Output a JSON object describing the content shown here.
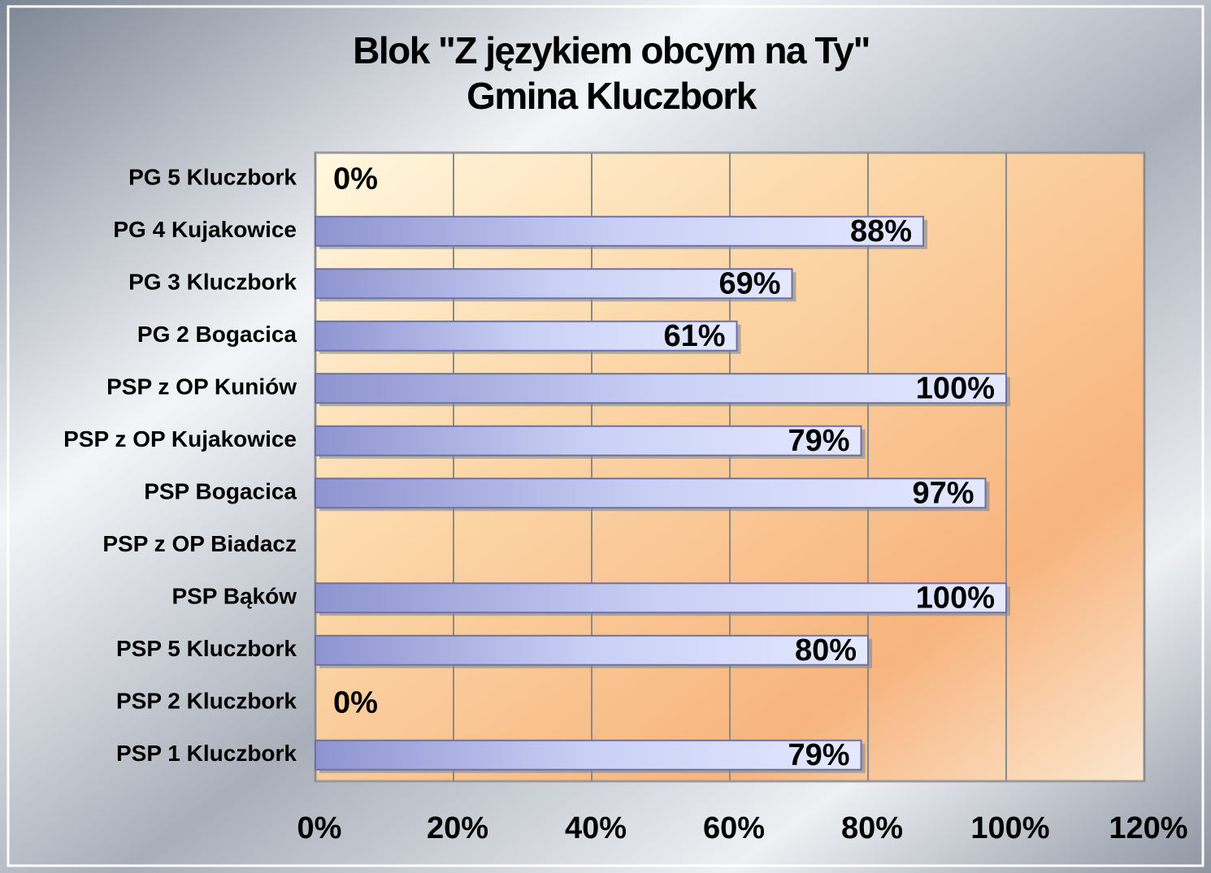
{
  "chart_data": {
    "type": "bar",
    "orientation": "horizontal",
    "title": "Blok \"Z językiem obcym na Ty\"",
    "subtitle": "Gmina Kluczbork",
    "categories": [
      "PG 5 Kluczbork",
      "PG 4 Kujakowice",
      "PG 3 Kluczbork",
      "PG 2 Bogacica",
      "PSP z OP Kuniów",
      "PSP z OP Kujakowice",
      "PSP Bogacica",
      "PSP z OP Biadacz",
      "PSP Bąków",
      "PSP 5 Kluczbork",
      "PSP 2 Kluczbork",
      "PSP 1 Kluczbork"
    ],
    "values": [
      0,
      88,
      69,
      61,
      100,
      79,
      97,
      null,
      100,
      80,
      0,
      79
    ],
    "value_labels": [
      "0%",
      "88%",
      "69%",
      "61%",
      "100%",
      "79%",
      "97%",
      null,
      "100%",
      "80%",
      "0%",
      "79%"
    ],
    "color": "#aab2ea",
    "xlim": [
      0,
      120
    ],
    "xticks": [
      {
        "value": 0,
        "label": "0%"
      },
      {
        "value": 20,
        "label": "20%"
      },
      {
        "value": 40,
        "label": "40%"
      },
      {
        "value": 60,
        "label": "60%"
      },
      {
        "value": 80,
        "label": "80%"
      },
      {
        "value": 100,
        "label": "100%"
      },
      {
        "value": 120,
        "label": "120%"
      }
    ],
    "grid": true
  }
}
